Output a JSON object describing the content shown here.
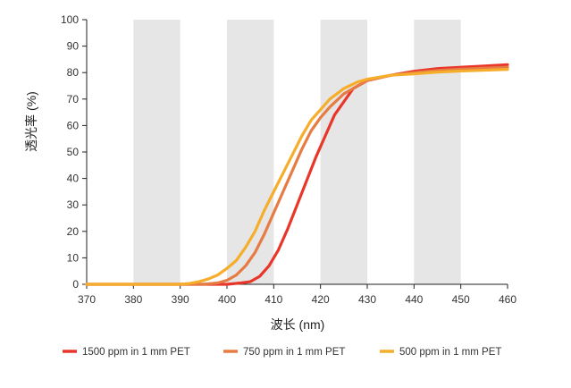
{
  "chart_data": {
    "type": "line",
    "xlabel": "波长 (nm)",
    "ylabel": "透光率 (%)",
    "xlim": [
      370,
      460
    ],
    "ylim": [
      0,
      100
    ],
    "x_ticks": [
      370,
      380,
      390,
      400,
      410,
      420,
      430,
      440,
      450,
      460
    ],
    "y_ticks": [
      0,
      10,
      20,
      30,
      40,
      50,
      60,
      70,
      80,
      90,
      100
    ],
    "grid": false,
    "shaded_bands": [
      [
        380,
        390
      ],
      [
        400,
        410
      ],
      [
        420,
        430
      ],
      [
        440,
        450
      ]
    ],
    "legend_position": "bottom",
    "series": [
      {
        "name": "1500 ppm in 1 mm PET",
        "color": "#e8372a",
        "x": [
          370,
          380,
          390,
          395,
          400,
          403,
          405,
          407,
          409,
          411,
          413,
          415,
          417,
          419,
          421,
          423,
          425,
          427,
          430,
          435,
          440,
          445,
          450,
          455,
          460
        ],
        "y": [
          0,
          0,
          0,
          0,
          0,
          0.5,
          1,
          3,
          7,
          13,
          21,
          30,
          39,
          48,
          56,
          64,
          69,
          74,
          77,
          79,
          80.5,
          81.5,
          82,
          82.5,
          83
        ]
      },
      {
        "name": "750 ppm in 1 mm PET",
        "color": "#e77b44",
        "x": [
          370,
          380,
          390,
          395,
          398,
          400,
          402,
          404,
          406,
          408,
          410,
          412,
          414,
          416,
          418,
          420,
          422,
          425,
          428,
          430,
          435,
          440,
          445,
          450,
          455,
          460
        ],
        "y": [
          0,
          0,
          0,
          0,
          0.5,
          1.5,
          3.5,
          7,
          12,
          19,
          27,
          35,
          43,
          51,
          58,
          63,
          67,
          72,
          75,
          77,
          79,
          80,
          80.8,
          81.3,
          81.7,
          82
        ]
      },
      {
        "name": "500 ppm in 1 mm PET",
        "color": "#f6ad2b",
        "x": [
          370,
          380,
          390,
          392,
          394,
          396,
          398,
          400,
          402,
          404,
          406,
          408,
          410,
          412,
          414,
          416,
          418,
          420,
          422,
          425,
          428,
          430,
          435,
          440,
          445,
          450,
          455,
          460
        ],
        "y": [
          0,
          0,
          0,
          0.3,
          1,
          2,
          3.5,
          6,
          9,
          14,
          20,
          28,
          35,
          42,
          49,
          56,
          62,
          66,
          70,
          74,
          76.5,
          77.5,
          79,
          79.5,
          80.2,
          80.6,
          80.9,
          81.2
        ]
      }
    ]
  }
}
